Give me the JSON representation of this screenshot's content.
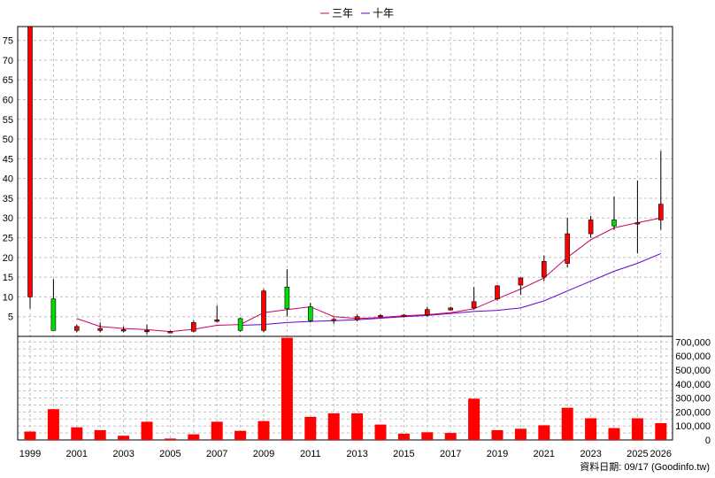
{
  "chart_data": {
    "type": "candlestick",
    "legend": [
      {
        "name": "三年",
        "color": "#cc0066"
      },
      {
        "name": "十年",
        "color": "#6600cc"
      }
    ],
    "footer": "資料日期: 09/17  (Goodinfo.tw)",
    "x_ticks": [
      "1999",
      "2001",
      "2003",
      "2005",
      "2007",
      "2009",
      "2011",
      "2013",
      "2015",
      "2017",
      "2019",
      "2021",
      "2023",
      "2025",
      "2026"
    ],
    "price_ticks": [
      5,
      10,
      15,
      20,
      25,
      30,
      35,
      40,
      45,
      50,
      55,
      60,
      65,
      70,
      75
    ],
    "price_ylim": [
      0,
      78.5
    ],
    "volume_ticks": [
      "0",
      "100,000",
      "200,000",
      "300,000",
      "400,000",
      "500,000",
      "600,000",
      "700,000"
    ],
    "volume_ylim": [
      0,
      740000
    ],
    "grid": true,
    "colors": {
      "up": "#ff0000",
      "down": "#00dd00",
      "volume": "#ff0000",
      "grid": "#c0c0c0"
    },
    "candles": [
      {
        "year": 1999,
        "open": 10,
        "high": 78.5,
        "low": 7,
        "close": 78.5
      },
      {
        "year": 2000,
        "open": 9.5,
        "high": 14.5,
        "low": 1.5,
        "close": 1.5
      },
      {
        "year": 2001,
        "open": 1.5,
        "high": 3,
        "low": 1,
        "close": 2.5
      },
      {
        "year": 2002,
        "open": 1.5,
        "high": 3.5,
        "low": 1,
        "close": 2
      },
      {
        "year": 2003,
        "open": 1.5,
        "high": 2.5,
        "low": 1,
        "close": 1.7
      },
      {
        "year": 2004,
        "open": 1.4,
        "high": 3,
        "low": 0.5,
        "close": 1.5
      },
      {
        "year": 2005,
        "open": 1.2,
        "high": 1.5,
        "low": 0.8,
        "close": 1.2
      },
      {
        "year": 2006,
        "open": 1.3,
        "high": 4,
        "low": 1,
        "close": 3.5
      },
      {
        "year": 2007,
        "open": 3.8,
        "high": 7.8,
        "low": 3.5,
        "close": 4.2
      },
      {
        "year": 2008,
        "open": 4.5,
        "high": 4.8,
        "low": 1.2,
        "close": 1.5
      },
      {
        "year": 2009,
        "open": 1.5,
        "high": 12,
        "low": 1,
        "close": 11.5
      },
      {
        "year": 2010,
        "open": 12.5,
        "high": 17,
        "low": 5,
        "close": 7
      },
      {
        "year": 2011,
        "open": 7.5,
        "high": 8.5,
        "low": 3.5,
        "close": 4
      },
      {
        "year": 2012,
        "open": 4,
        "high": 4.8,
        "low": 3.2,
        "close": 4.3
      },
      {
        "year": 2013,
        "open": 4.3,
        "high": 5.5,
        "low": 3.8,
        "close": 5
      },
      {
        "year": 2014,
        "open": 5,
        "high": 5.6,
        "low": 4.8,
        "close": 5.3
      },
      {
        "year": 2015,
        "open": 5.2,
        "high": 5.6,
        "low": 4.8,
        "close": 5.4
      },
      {
        "year": 2016,
        "open": 5.5,
        "high": 7.5,
        "low": 5,
        "close": 6.8
      },
      {
        "year": 2017,
        "open": 6.7,
        "high": 7.5,
        "low": 6.5,
        "close": 7.2
      },
      {
        "year": 2018,
        "open": 7.2,
        "high": 12.5,
        "low": 6.8,
        "close": 8.8
      },
      {
        "year": 2019,
        "open": 9.5,
        "high": 13,
        "low": 9,
        "close": 12.8
      },
      {
        "year": 2020,
        "open": 13,
        "high": 15,
        "low": 10.5,
        "close": 14.8
      },
      {
        "year": 2021,
        "open": 15,
        "high": 20.5,
        "low": 14,
        "close": 19
      },
      {
        "year": 2022,
        "open": 18.5,
        "high": 30,
        "low": 17.5,
        "close": 26
      },
      {
        "year": 2023,
        "open": 26,
        "high": 30.5,
        "low": 25,
        "close": 29.5
      },
      {
        "year": 2024,
        "open": 29.5,
        "high": 35.5,
        "low": 27,
        "close": 28
      },
      {
        "year": 2025,
        "open": 28.5,
        "high": 39.5,
        "low": 21,
        "close": 28.8
      },
      {
        "year": 2026,
        "open": 29.5,
        "high": 47,
        "low": 27,
        "close": 33.5
      }
    ],
    "volume": [
      {
        "year": 1999,
        "value": 60000
      },
      {
        "year": 2000,
        "value": 220000
      },
      {
        "year": 2001,
        "value": 90000
      },
      {
        "year": 2002,
        "value": 70000
      },
      {
        "year": 2003,
        "value": 30000
      },
      {
        "year": 2004,
        "value": 130000
      },
      {
        "year": 2005,
        "value": 10000
      },
      {
        "year": 2006,
        "value": 40000
      },
      {
        "year": 2007,
        "value": 130000
      },
      {
        "year": 2008,
        "value": 65000
      },
      {
        "year": 2009,
        "value": 135000
      },
      {
        "year": 2010,
        "value": 730000
      },
      {
        "year": 2011,
        "value": 165000
      },
      {
        "year": 2012,
        "value": 190000
      },
      {
        "year": 2013,
        "value": 190000
      },
      {
        "year": 2014,
        "value": 110000
      },
      {
        "year": 2015,
        "value": 45000
      },
      {
        "year": 2016,
        "value": 55000
      },
      {
        "year": 2017,
        "value": 50000
      },
      {
        "year": 2018,
        "value": 295000
      },
      {
        "year": 2019,
        "value": 70000
      },
      {
        "year": 2020,
        "value": 80000
      },
      {
        "year": 2021,
        "value": 105000
      },
      {
        "year": 2022,
        "value": 230000
      },
      {
        "year": 2023,
        "value": 155000
      },
      {
        "year": 2024,
        "value": 85000
      },
      {
        "year": 2025,
        "value": 155000
      },
      {
        "year": 2026,
        "value": 120000
      }
    ],
    "ma3": [
      [
        2001,
        4.5
      ],
      [
        2002,
        2.5
      ],
      [
        2003,
        2
      ],
      [
        2004,
        1.7
      ],
      [
        2005,
        1.2
      ],
      [
        2006,
        1.8
      ],
      [
        2007,
        2.8
      ],
      [
        2008,
        3
      ],
      [
        2009,
        6
      ],
      [
        2010,
        6.8
      ],
      [
        2011,
        7.5
      ],
      [
        2012,
        5
      ],
      [
        2013,
        4.5
      ],
      [
        2014,
        4.8
      ],
      [
        2015,
        5.2
      ],
      [
        2016,
        5.5
      ],
      [
        2017,
        6
      ],
      [
        2018,
        7
      ],
      [
        2019,
        9.5
      ],
      [
        2020,
        12
      ],
      [
        2021,
        14.8
      ],
      [
        2022,
        20
      ],
      [
        2023,
        24.5
      ],
      [
        2024,
        27.5
      ],
      [
        2025,
        28.8
      ],
      [
        2026,
        30
      ]
    ],
    "ma10": [
      [
        2008,
        2.8
      ],
      [
        2009,
        3
      ],
      [
        2010,
        3.5
      ],
      [
        2011,
        3.8
      ],
      [
        2012,
        4
      ],
      [
        2013,
        4.2
      ],
      [
        2014,
        4.6
      ],
      [
        2015,
        5
      ],
      [
        2016,
        5.3
      ],
      [
        2017,
        5.8
      ],
      [
        2018,
        6.3
      ],
      [
        2019,
        6.6
      ],
      [
        2020,
        7.2
      ],
      [
        2021,
        9
      ],
      [
        2022,
        11.5
      ],
      [
        2023,
        14
      ],
      [
        2024,
        16.5
      ],
      [
        2025,
        18.5
      ],
      [
        2026,
        21
      ]
    ]
  }
}
